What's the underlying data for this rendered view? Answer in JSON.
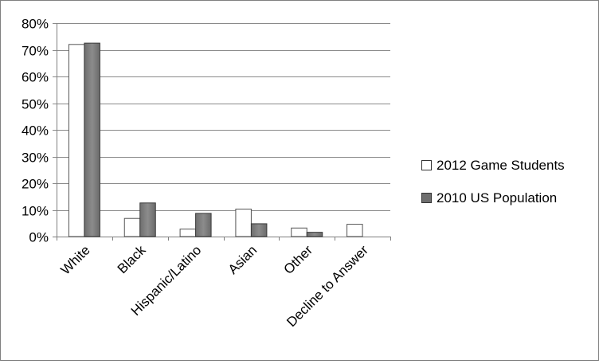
{
  "chart_data": {
    "type": "bar",
    "title": "",
    "xlabel": "",
    "ylabel": "",
    "categories": [
      "White",
      "Black",
      "Hispanic/Latino",
      "Asian",
      "Other",
      "Decline to Answer"
    ],
    "series": [
      {
        "name": "2012 Game Students",
        "color": "#ffffff",
        "values": [
          72,
          6.8,
          2.8,
          10.3,
          3.2,
          4.6
        ]
      },
      {
        "name": "2010 US Population",
        "color": "#7f7f7f",
        "values": [
          72.5,
          12.6,
          8.7,
          4.8,
          1.6,
          0
        ]
      }
    ],
    "ylim": [
      0,
      80
    ],
    "yticks": [
      "0%",
      "10%",
      "20%",
      "30%",
      "40%",
      "50%",
      "60%",
      "70%",
      "80%"
    ],
    "grid": true,
    "legend_position": "right"
  }
}
